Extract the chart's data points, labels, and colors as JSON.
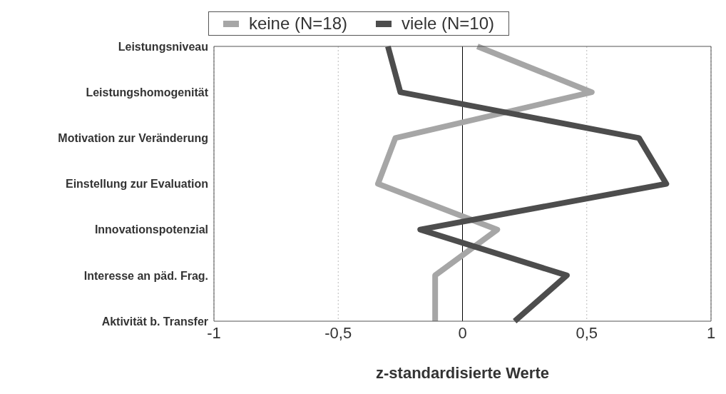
{
  "chart_data": {
    "type": "line",
    "xlabel": "z-standardisierte Werte",
    "categories": [
      "Leistungsniveau",
      "Leistungshomogenität",
      "Motivation zur Veränderung",
      "Einstellung zur Evaluation",
      "Innovationspotenzial",
      "Interesse an päd. Frag.",
      "Aktivität b. Transfer"
    ],
    "series": [
      {
        "name": "keine (N=18)",
        "color": "#a6a6a6",
        "values": [
          0.06,
          0.52,
          -0.27,
          -0.34,
          0.14,
          -0.11,
          -0.11
        ]
      },
      {
        "name": "viele (N=10)",
        "color": "#4d4d4d",
        "values": [
          -0.3,
          -0.25,
          0.71,
          0.82,
          -0.17,
          0.42,
          0.21
        ]
      }
    ],
    "orientation": "horizontal",
    "xlim": [
      -1,
      1
    ],
    "xticks": [
      -1,
      {
        "value": -0.5,
        "label": "-0,5"
      },
      0,
      {
        "value": 0.5,
        "label": "0,5"
      },
      1
    ],
    "ref_lines": [
      {
        "axis": "x",
        "value": 0,
        "color": "#000000"
      }
    ],
    "grid": "x",
    "legend": "top",
    "marker": "none",
    "line_style": "solid"
  }
}
